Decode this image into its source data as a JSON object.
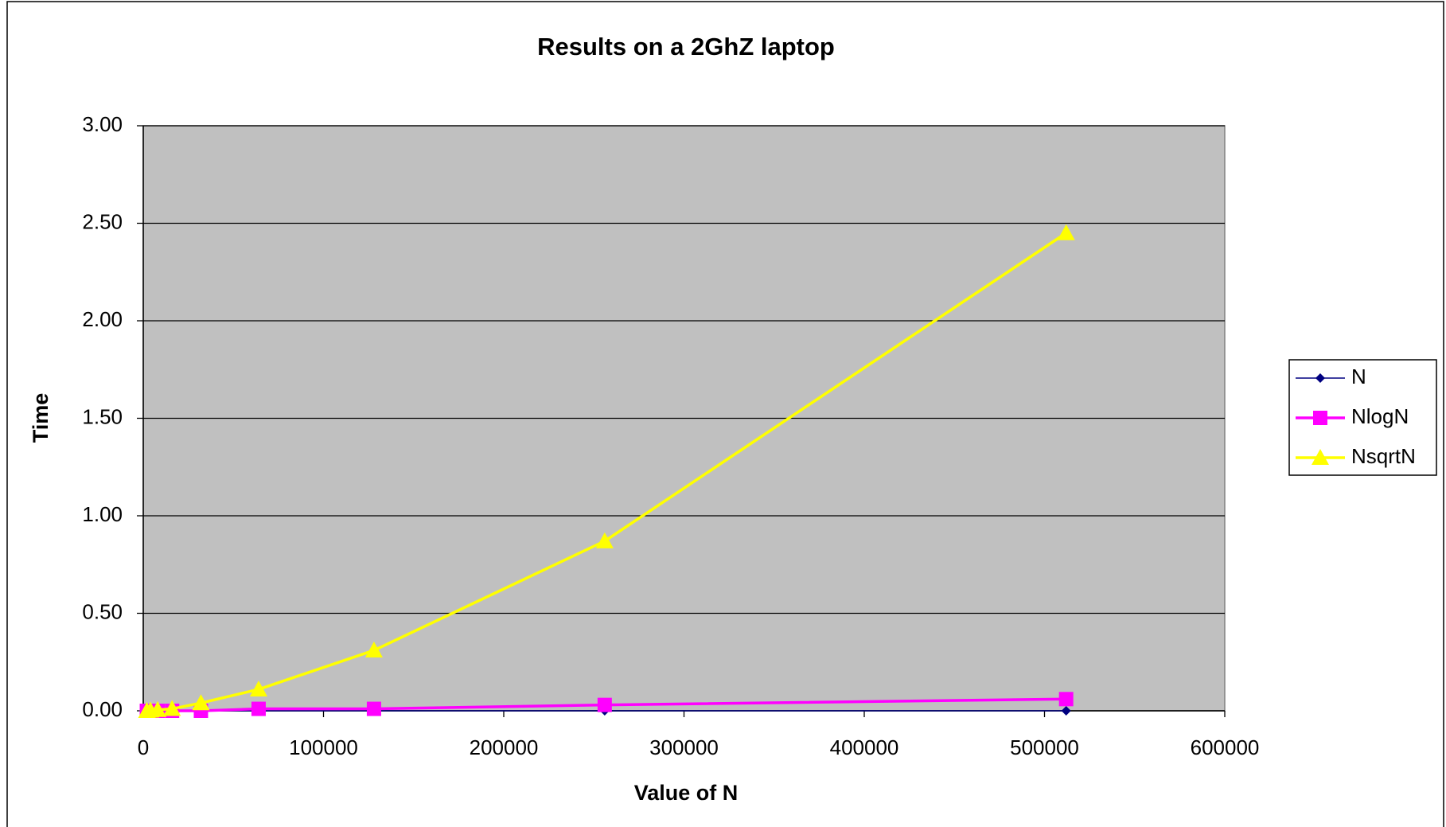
{
  "chart_data": {
    "type": "line",
    "title": "Results on a 2GhZ laptop",
    "x_label": "Value of N",
    "y_label": "Time",
    "x": [
      2000,
      4000,
      8000,
      16000,
      32000,
      64000,
      128000,
      256000,
      512000
    ],
    "series": [
      {
        "name": "N",
        "color": "#000080",
        "marker": "diamond",
        "values": [
          0,
          0,
          0,
          0,
          0,
          0,
          0,
          0,
          0
        ]
      },
      {
        "name": "NlogN",
        "color": "#ff00ff",
        "marker": "square",
        "values": [
          0,
          0,
          0,
          0,
          0,
          0.01,
          0.01,
          0.03,
          0.06
        ]
      },
      {
        "name": "NsqrtN",
        "color": "#ffff00",
        "marker": "triangle",
        "values": [
          0,
          0.002,
          0.005,
          0.01,
          0.04,
          0.11,
          0.31,
          0.87,
          2.45
        ]
      }
    ],
    "xlim": [
      0,
      600000
    ],
    "xticks": [
      0,
      100000,
      200000,
      300000,
      400000,
      500000,
      600000
    ],
    "ylim": [
      0,
      3
    ],
    "yticks": [
      {
        "value": 0,
        "label": "0.00"
      },
      {
        "value": 0.5,
        "label": "0.50"
      },
      {
        "value": 1,
        "label": "1.00"
      },
      {
        "value": 1.5,
        "label": "1.50"
      },
      {
        "value": 2,
        "label": "2.00"
      },
      {
        "value": 2.5,
        "label": "2.50"
      },
      {
        "value": 3,
        "label": "3.00"
      }
    ],
    "grid": true,
    "legend": "right"
  }
}
